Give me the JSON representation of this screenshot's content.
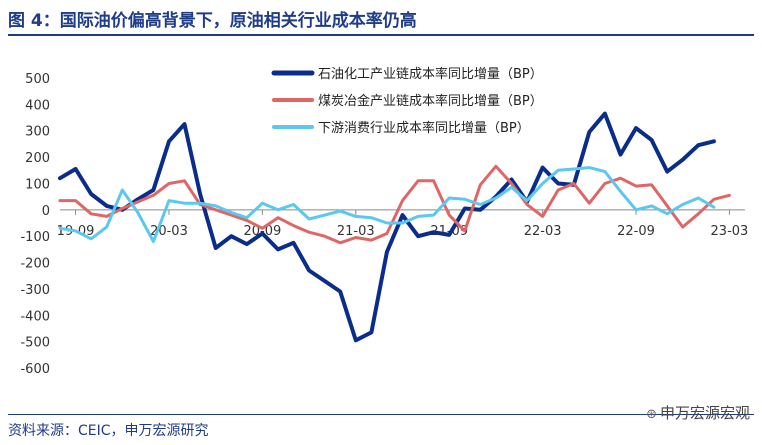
{
  "title": "图 4：国际油价偏高背景下，原油相关行业成本率仍高",
  "source": "资料来源：CEIC，申万宏源研究",
  "watermark": "申万宏源宏观",
  "chart_data": {
    "type": "line",
    "ylim": [
      -600,
      500
    ],
    "yticks": [
      500,
      400,
      300,
      200,
      100,
      0,
      -100,
      -200,
      -300,
      -400,
      -500,
      -600
    ],
    "xticks": [
      "19-09",
      "20-03",
      "20-09",
      "21-03",
      "21-09",
      "22-03",
      "22-09",
      "23-03"
    ],
    "legend_position": "top-center",
    "x": [
      "19-08",
      "19-09",
      "19-10",
      "19-11",
      "19-12",
      "20-01",
      "20-02",
      "20-03",
      "20-04",
      "20-05",
      "20-06",
      "20-07",
      "20-08",
      "20-09",
      "20-10",
      "20-11",
      "20-12",
      "21-01",
      "21-02",
      "21-03",
      "21-04",
      "21-05",
      "21-06",
      "21-07",
      "21-08",
      "21-09",
      "21-10",
      "21-11",
      "21-12",
      "22-01",
      "22-02",
      "22-03",
      "22-04",
      "22-05",
      "22-06",
      "22-07",
      "22-08",
      "22-09",
      "22-10",
      "22-11",
      "22-12",
      "23-01",
      "23-02",
      "23-03",
      "23-04"
    ],
    "series": [
      {
        "name": "石油化工产业链成本率同比增量（BP）",
        "color": "#0a2c8a",
        "width": 4,
        "values": [
          120,
          155,
          60,
          15,
          0,
          40,
          75,
          260,
          325,
          60,
          -145,
          -100,
          -130,
          -90,
          -150,
          -125,
          -230,
          -270,
          -310,
          -495,
          -465,
          -160,
          -20,
          -100,
          -85,
          -95,
          5,
          0,
          50,
          115,
          30,
          160,
          100,
          95,
          295,
          365,
          210,
          310,
          265,
          145,
          190,
          245,
          260,
          null,
          null
        ]
      },
      {
        "name": "煤炭冶金产业链成本率同比增量（BP）",
        "color": "#e06666",
        "width": 3,
        "values": [
          35,
          35,
          -15,
          -25,
          5,
          30,
          55,
          100,
          110,
          20,
          0,
          -20,
          -40,
          -70,
          -30,
          -60,
          -85,
          -100,
          -125,
          -105,
          -115,
          -90,
          35,
          110,
          110,
          -20,
          -80,
          95,
          165,
          100,
          20,
          -25,
          75,
          100,
          25,
          100,
          120,
          90,
          95,
          15,
          -65,
          -15,
          40,
          55,
          null
        ]
      },
      {
        "name": "下游消费行业成本率同比增量（BP）",
        "color": "#5bc8ef",
        "width": 3,
        "values": [
          -70,
          -80,
          -110,
          -65,
          75,
          -10,
          -120,
          35,
          25,
          25,
          15,
          -10,
          -30,
          25,
          0,
          20,
          -35,
          -20,
          -5,
          -25,
          -30,
          -50,
          -50,
          -25,
          -20,
          45,
          40,
          20,
          45,
          85,
          35,
          100,
          150,
          155,
          160,
          145,
          70,
          0,
          15,
          -15,
          20,
          45,
          10,
          null,
          null
        ]
      }
    ]
  }
}
